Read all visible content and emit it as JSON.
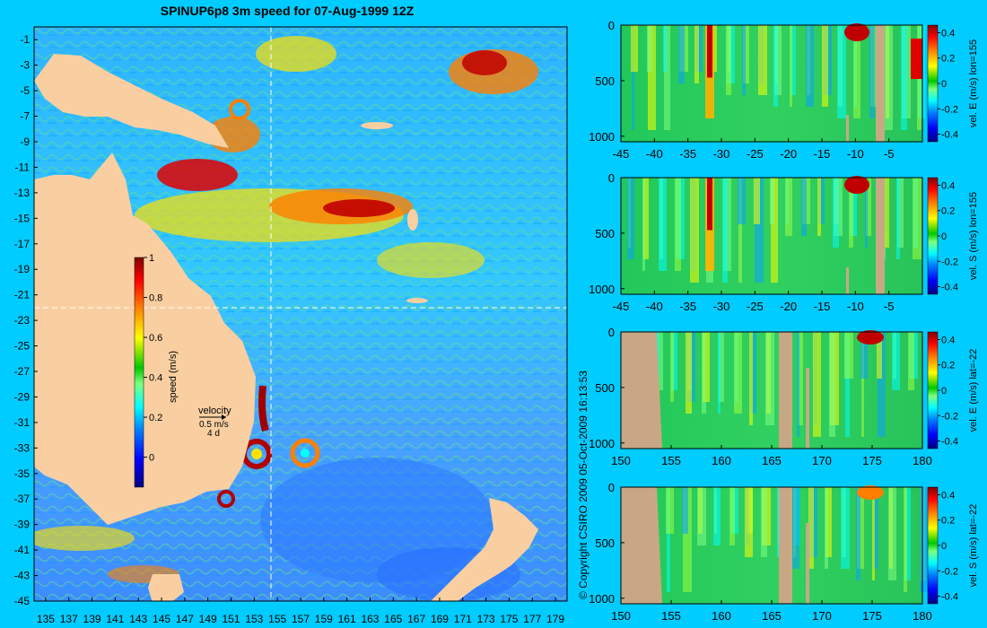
{
  "title": "SPINUP6p8 3m speed for 07-Aug-1999 12Z",
  "copyright": "© Copyright CSIRO 2009   05-Oct-2009 16:13:53",
  "colors": {
    "land": "#f9cfa2",
    "section_land": "#c8a884",
    "background": "#00ccff",
    "colormap": [
      "#00007f",
      "#0000ff",
      "#0080ff",
      "#00ffff",
      "#7fff7f",
      "#00c800",
      "#ffff00",
      "#ff8000",
      "#ff0000",
      "#7f0000"
    ]
  },
  "chart_data": [
    {
      "type": "heatmap",
      "name": "map",
      "xlabel_ticks": [
        "135",
        "137",
        "139",
        "141",
        "143",
        "145",
        "147",
        "149",
        "151",
        "153",
        "155",
        "157",
        "159",
        "161",
        "163",
        "165",
        "167",
        "169",
        "171",
        "173",
        "175",
        "177",
        "179"
      ],
      "ylabel_ticks": [
        "-1",
        "-3",
        "-5",
        "-7",
        "-9",
        "-11",
        "-13",
        "-15",
        "-17",
        "-19",
        "-21",
        "-23",
        "-25",
        "-27",
        "-29",
        "-31",
        "-33",
        "-35",
        "-37",
        "-39",
        "-41",
        "-43",
        "-45"
      ],
      "xlim": [
        134,
        180
      ],
      "ylim": [
        -45,
        0
      ],
      "section_lon": 155,
      "section_lat": -22,
      "colorbar": {
        "label": "speed (m/s)",
        "ticks": [
          "1",
          "0.8",
          "0.6",
          "0.4",
          "0.2",
          "0"
        ],
        "range": [
          -0.15,
          1
        ]
      },
      "velocity_key": {
        "line1": "velocity",
        "line2": "0.5 m/s",
        "line3": "4 d"
      }
    },
    {
      "type": "heatmap",
      "name": "section-1",
      "x_ticks": [
        "-45",
        "-40",
        "-35",
        "-30",
        "-25",
        "-20",
        "-15",
        "-10",
        "-5"
      ],
      "y_ticks": [
        "0",
        "500",
        "1000"
      ],
      "colorbar": {
        "label": "vel. E (m/s) lon=155",
        "ticks": [
          "0.4",
          "0.2",
          "0",
          "-0.2",
          "-0.4"
        ]
      }
    },
    {
      "type": "heatmap",
      "name": "section-2",
      "x_ticks": [
        "-45",
        "-40",
        "-35",
        "-30",
        "-25",
        "-20",
        "-15",
        "-10",
        "-5"
      ],
      "y_ticks": [
        "0",
        "500",
        "1000"
      ],
      "colorbar": {
        "label": "vel. S (m/s) lon=155",
        "ticks": [
          "0.4",
          "0.2",
          "0",
          "-0.2",
          "-0.4"
        ]
      }
    },
    {
      "type": "heatmap",
      "name": "section-3",
      "x_ticks": [
        "150",
        "155",
        "160",
        "165",
        "170",
        "175",
        "180"
      ],
      "y_ticks": [
        "0",
        "500",
        "1000"
      ],
      "colorbar": {
        "label": "vel. E (m/s) lat=-22",
        "ticks": [
          "0.4",
          "0.2",
          "0",
          "-0.2",
          "-0.4"
        ]
      }
    },
    {
      "type": "heatmap",
      "name": "section-4",
      "x_ticks": [
        "150",
        "155",
        "160",
        "165",
        "170",
        "175",
        "180"
      ],
      "y_ticks": [
        "0",
        "500",
        "1000"
      ],
      "colorbar": {
        "label": "vel. S (m/s) lat=-22",
        "ticks": [
          "0.4",
          "0.2",
          "0",
          "-0.2",
          "-0.4"
        ]
      }
    }
  ]
}
